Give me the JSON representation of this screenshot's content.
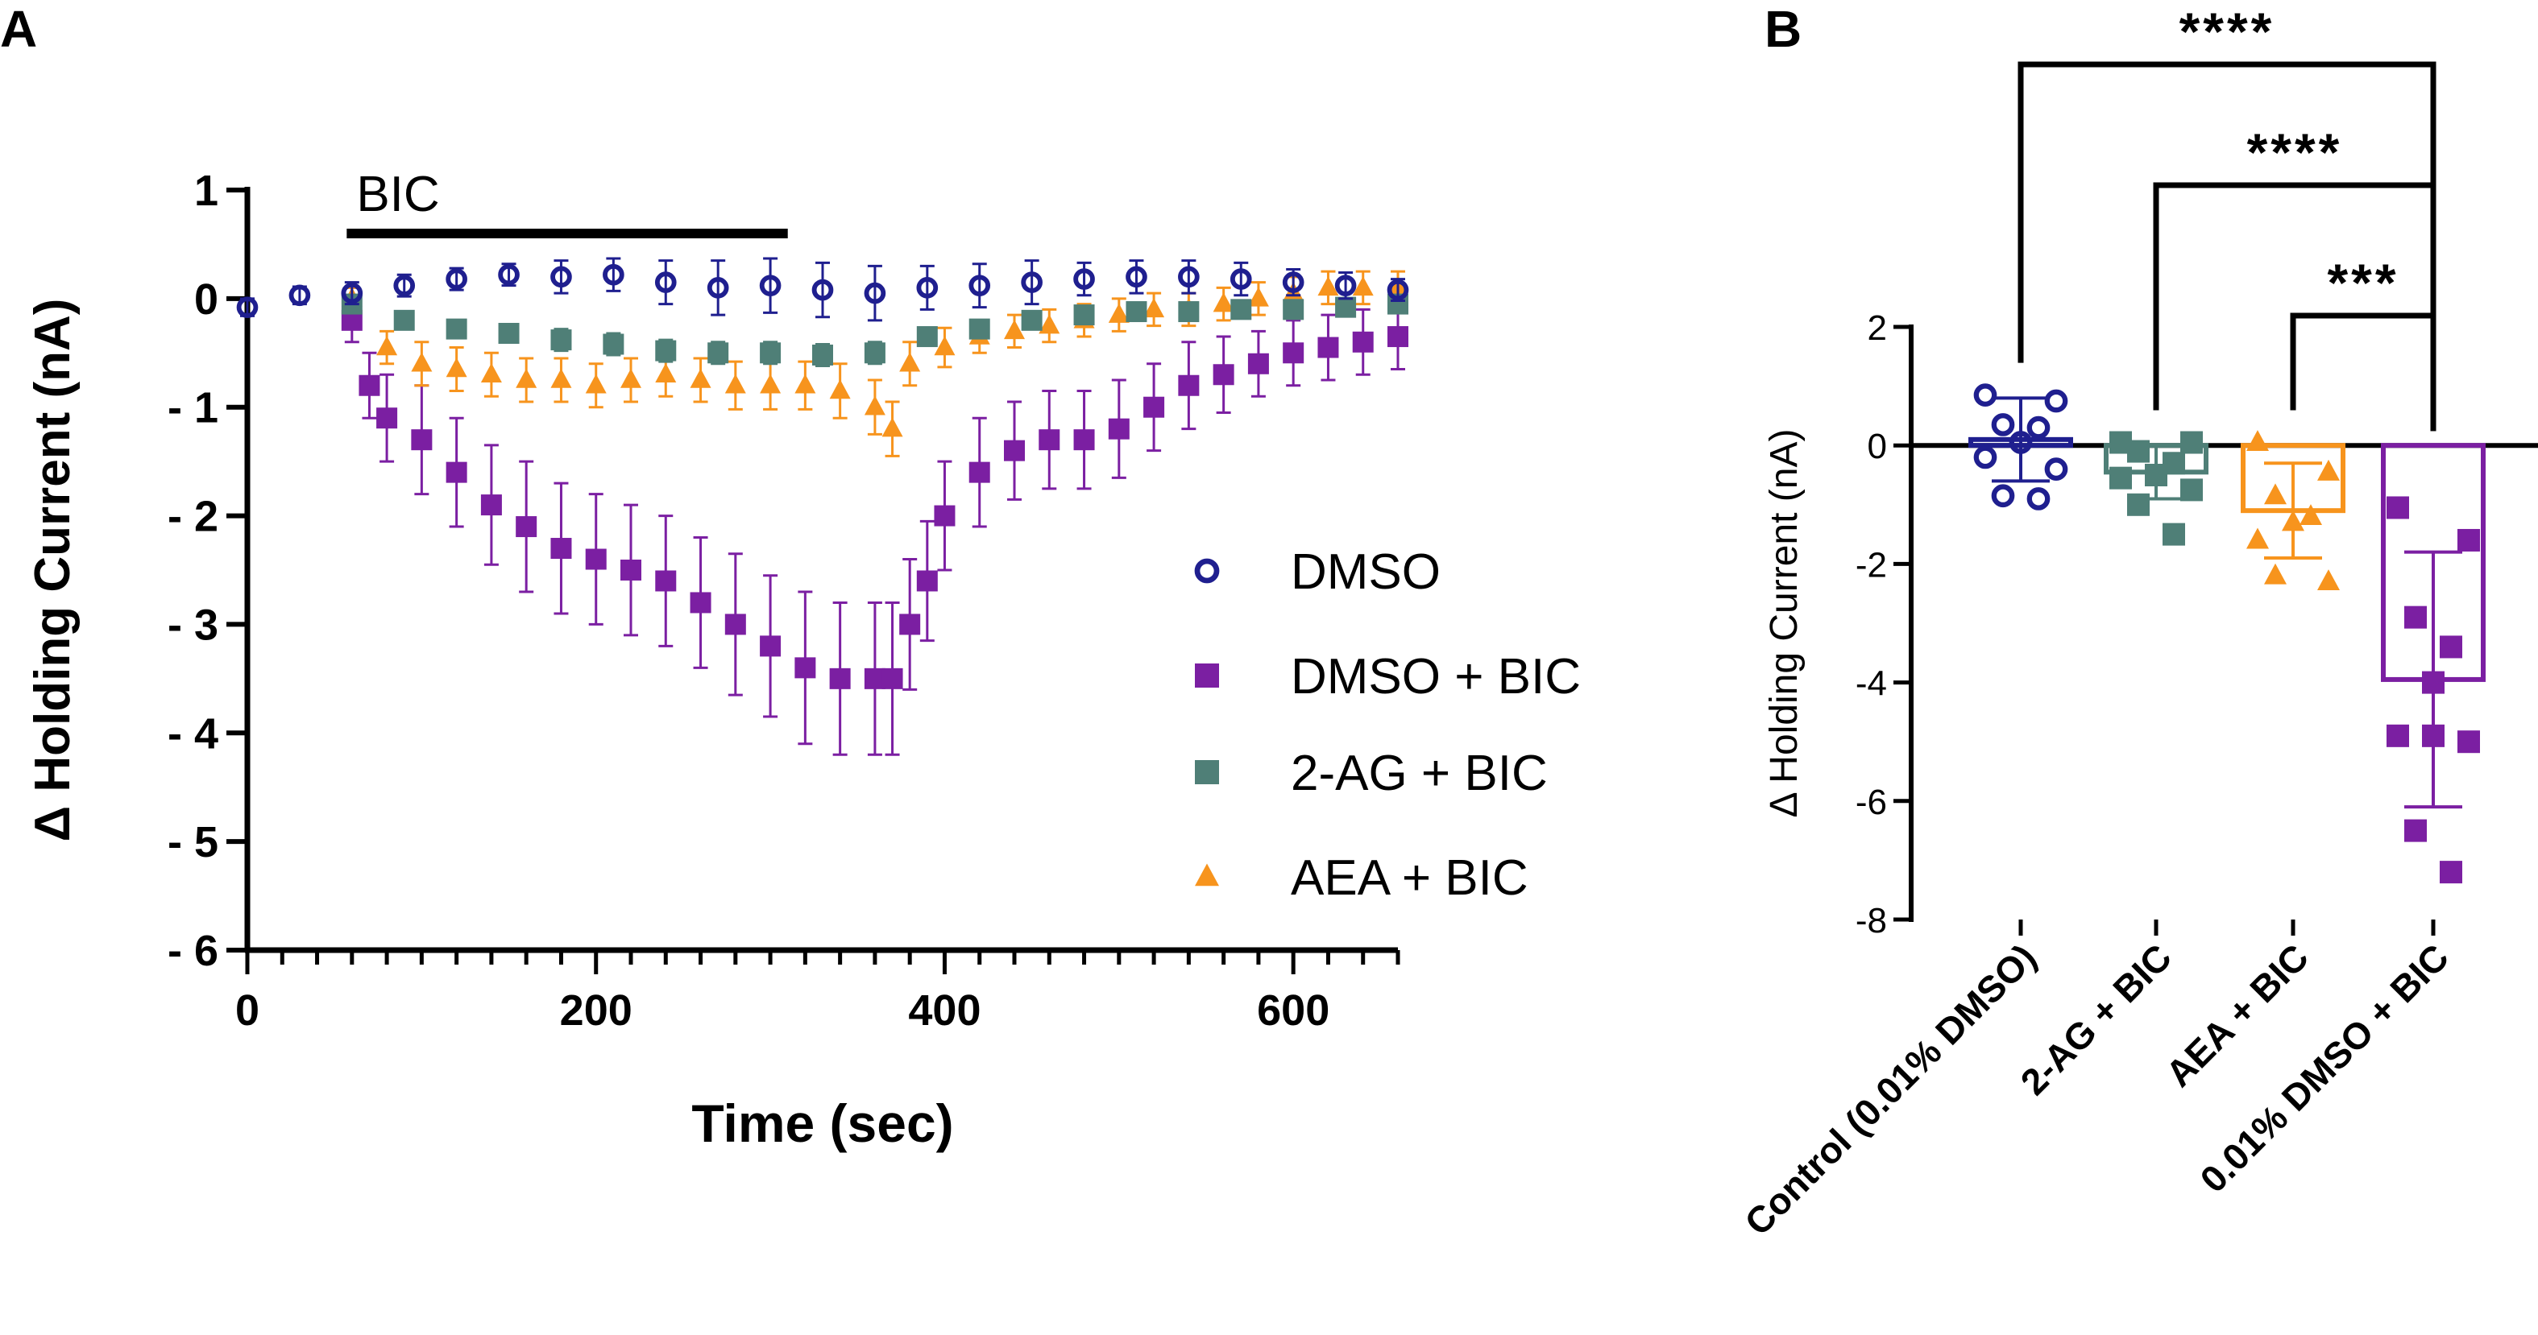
{
  "panels": {
    "a_label": "A",
    "b_label": "B"
  },
  "colors": {
    "dmso": "#1f1f8f",
    "dmso_bic": "#7b1fa2",
    "ag_bic": "#4f7f77",
    "aea_bic": "#f7941d",
    "axis": "#000000"
  },
  "chart_data": [
    {
      "type": "scatter",
      "panel": "A",
      "title": "",
      "xlabel": "Time (sec)",
      "ylabel": "Δ Holding Current (nA)",
      "xlim": [
        0,
        660
      ],
      "ylim": [
        -6,
        1
      ],
      "x_ticks": [
        0,
        200,
        400,
        600
      ],
      "y_ticks": [
        1,
        0,
        -1,
        -2,
        -3,
        -4,
        -5,
        -6
      ],
      "y_tick_labels": [
        "1",
        "0",
        "- 1",
        "- 2",
        "- 3",
        "- 4",
        "- 5",
        "- 6"
      ],
      "annotation": {
        "text": "BIC",
        "x_start": 57,
        "x_end": 310,
        "y": 0.6
      },
      "legend_position": "right",
      "series": [
        {
          "name": "DMSO",
          "marker": "open-circle",
          "x": [
            0,
            30,
            60,
            90,
            120,
            150,
            180,
            210,
            240,
            270,
            300,
            330,
            360,
            390,
            420,
            450,
            480,
            510,
            540,
            570,
            600,
            630,
            660
          ],
          "y": [
            -0.08,
            0.03,
            0.05,
            0.12,
            0.18,
            0.22,
            0.2,
            0.22,
            0.15,
            0.1,
            0.12,
            0.08,
            0.05,
            0.1,
            0.12,
            0.15,
            0.18,
            0.2,
            0.2,
            0.18,
            0.15,
            0.12,
            0.08
          ],
          "err": [
            0.08,
            0.08,
            0.1,
            0.1,
            0.1,
            0.1,
            0.15,
            0.15,
            0.2,
            0.25,
            0.25,
            0.25,
            0.25,
            0.2,
            0.2,
            0.2,
            0.15,
            0.15,
            0.15,
            0.15,
            0.12,
            0.12,
            0.1
          ]
        },
        {
          "name": "DMSO + BIC",
          "marker": "square",
          "x": [
            60,
            70,
            80,
            100,
            120,
            140,
            160,
            180,
            200,
            220,
            240,
            260,
            280,
            300,
            320,
            340,
            360,
            370,
            380,
            390,
            400,
            420,
            440,
            460,
            480,
            500,
            520,
            540,
            560,
            580,
            600,
            620,
            640,
            660
          ],
          "y": [
            -0.2,
            -0.8,
            -1.1,
            -1.3,
            -1.6,
            -1.9,
            -2.1,
            -2.3,
            -2.4,
            -2.5,
            -2.6,
            -2.8,
            -3.0,
            -3.2,
            -3.4,
            -3.5,
            -3.5,
            -3.5,
            -3.0,
            -2.6,
            -2.0,
            -1.6,
            -1.4,
            -1.3,
            -1.3,
            -1.2,
            -1.0,
            -0.8,
            -0.7,
            -0.6,
            -0.5,
            -0.45,
            -0.4,
            -0.35
          ],
          "err": [
            0.2,
            0.3,
            0.4,
            0.5,
            0.5,
            0.55,
            0.6,
            0.6,
            0.6,
            0.6,
            0.6,
            0.6,
            0.65,
            0.65,
            0.7,
            0.7,
            0.7,
            0.7,
            0.6,
            0.55,
            0.5,
            0.5,
            0.45,
            0.45,
            0.45,
            0.45,
            0.4,
            0.4,
            0.35,
            0.3,
            0.3,
            0.3,
            0.3,
            0.3
          ]
        },
        {
          "name": "2-AG + BIC",
          "marker": "square",
          "x": [
            60,
            90,
            120,
            150,
            180,
            210,
            240,
            270,
            300,
            330,
            360,
            390,
            420,
            450,
            480,
            510,
            540,
            570,
            600,
            630,
            660
          ],
          "y": [
            -0.05,
            -0.2,
            -0.28,
            -0.32,
            -0.38,
            -0.42,
            -0.48,
            -0.5,
            -0.5,
            -0.52,
            -0.5,
            -0.35,
            -0.28,
            -0.2,
            -0.15,
            -0.12,
            -0.12,
            -0.1,
            -0.1,
            -0.08,
            -0.05
          ],
          "err": [
            0.05,
            0.08,
            0.08,
            0.08,
            0.1,
            0.1,
            0.1,
            0.1,
            0.1,
            0.1,
            0.1,
            0.08,
            0.08,
            0.06,
            0.06,
            0.06,
            0.05,
            0.05,
            0.05,
            0.05,
            0.05
          ]
        },
        {
          "name": "AEA + BIC",
          "marker": "triangle",
          "x": [
            60,
            80,
            100,
            120,
            140,
            160,
            180,
            200,
            220,
            240,
            260,
            280,
            300,
            320,
            340,
            360,
            370,
            380,
            400,
            420,
            440,
            460,
            480,
            500,
            520,
            540,
            560,
            580,
            600,
            620,
            640,
            660
          ],
          "y": [
            0.0,
            -0.45,
            -0.6,
            -0.65,
            -0.7,
            -0.75,
            -0.75,
            -0.8,
            -0.75,
            -0.7,
            -0.75,
            -0.8,
            -0.8,
            -0.8,
            -0.85,
            -1.0,
            -1.2,
            -0.6,
            -0.45,
            -0.35,
            -0.3,
            -0.25,
            -0.2,
            -0.15,
            -0.1,
            -0.1,
            -0.05,
            0.0,
            0.05,
            0.1,
            0.1,
            0.1
          ],
          "err": [
            0.1,
            0.15,
            0.2,
            0.2,
            0.2,
            0.2,
            0.2,
            0.2,
            0.2,
            0.2,
            0.2,
            0.22,
            0.22,
            0.22,
            0.25,
            0.25,
            0.25,
            0.2,
            0.18,
            0.15,
            0.15,
            0.15,
            0.15,
            0.15,
            0.15,
            0.15,
            0.15,
            0.15,
            0.15,
            0.15,
            0.15,
            0.15
          ]
        }
      ]
    },
    {
      "type": "bar",
      "panel": "B",
      "title": "",
      "xlabel": "",
      "ylabel": "Δ Holding Current (nA)",
      "ylim": [
        -8,
        2
      ],
      "y_ticks": [
        2,
        0,
        -2,
        -4,
        -6,
        -8
      ],
      "y_tick_labels": [
        "2",
        "0",
        "-2",
        "-4",
        "-6",
        "-8"
      ],
      "categories": [
        "Control (0.01% DMSO)",
        "2-AG + BIC",
        "AEA + BIC",
        "0.01% DMSO + BIC"
      ],
      "means": [
        0.1,
        -0.45,
        -1.1,
        -3.95
      ],
      "sd": [
        0.7,
        0.45,
        0.8,
        2.15
      ],
      "points": [
        [
          0.85,
          0.75,
          0.35,
          0.3,
          0.05,
          -0.2,
          -0.4,
          -0.85,
          -0.9
        ],
        [
          0.05,
          0.05,
          -0.1,
          -0.3,
          -0.5,
          -0.55,
          -0.75,
          -1.0,
          -1.5
        ],
        [
          0.05,
          -0.45,
          -0.85,
          -1.2,
          -1.3,
          -1.6,
          -2.3,
          -2.2
        ],
        [
          -1.05,
          -1.6,
          -2.9,
          -3.4,
          -4.0,
          -4.9,
          -5.0,
          -6.5,
          -7.2,
          -4.9
        ]
      ],
      "markers": [
        "open-circle",
        "square",
        "triangle",
        "square"
      ],
      "significance": [
        {
          "label": "****",
          "from": 0,
          "to": 3
        },
        {
          "label": "****",
          "from": 1,
          "to": 3
        },
        {
          "label": "***",
          "from": 2,
          "to": 3
        }
      ]
    }
  ]
}
